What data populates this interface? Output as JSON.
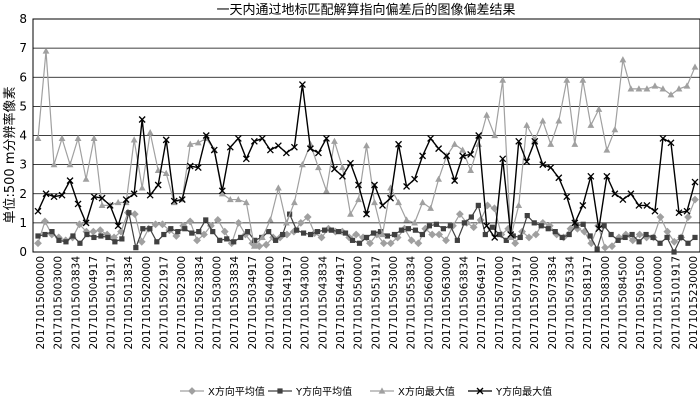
{
  "chart_data": {
    "type": "line",
    "title": "一天内通过地标匹配解算指向偏差后的图像偏差结果",
    "ylabel": "单位:500 m分辨率像素",
    "xlabel": "",
    "ylim": [
      0,
      8
    ],
    "yticks": [
      0,
      1,
      2,
      3,
      4,
      5,
      6,
      7,
      8
    ],
    "grid": true,
    "legend_position": "bottom",
    "x_tick_labels": [
      "20171015000000",
      "20171015003000",
      "20171015003834",
      "20171015004917",
      "20171015011917",
      "20171015013834",
      "20171015020000",
      "20171015021917",
      "20171015023000",
      "20171015023834",
      "20171015030000",
      "20171015033834",
      "20171015034917",
      "20171015040000",
      "20171015041917",
      "20171015043000",
      "20171015043834",
      "20171015044917",
      "20171015050000",
      "20171015051917",
      "20171015053000",
      "20171015053834",
      "20171015060000",
      "20171015063000",
      "20171015063834",
      "20171015064917",
      "20171015070000",
      "20171015071917",
      "20171015073000",
      "20171015073834",
      "20171015075334",
      "20171015081917",
      "20171015083000",
      "20171015084500",
      "20171015091500",
      "20171015100000",
      "20171015101917",
      "20171015230000"
    ],
    "series": [
      {
        "name": "X方向平均值",
        "color": "#a0a0a0",
        "marker": "diamond",
        "values": [
          0.3,
          1.05,
          0.6,
          0.5,
          0.4,
          0.5,
          0.95,
          0.7,
          0.7,
          0.75,
          0.6,
          0.5,
          0.7,
          1.35,
          1.3,
          0.35,
          0.8,
          0.95,
          0.95,
          0.75,
          0.55,
          0.9,
          1.05,
          0.4,
          0.6,
          0.9,
          1.1,
          0.7,
          0.3,
          1.0,
          0.6,
          0.3,
          0.2,
          0.25,
          0.5,
          0.5,
          0.6,
          0.7,
          1.0,
          1.2,
          0.65,
          0.5,
          0.8,
          0.7,
          0.7,
          0.5,
          0.6,
          0.5,
          0.3,
          0.6,
          0.3,
          0.3,
          0.5,
          0.8,
          0.4,
          0.3,
          0.8,
          0.6,
          0.6,
          0.4,
          0.9,
          1.3,
          1.0,
          0.85,
          1.1,
          1.6,
          1.5,
          0.6,
          0.8,
          0.3,
          0.7,
          0.5,
          0.6,
          1.0,
          0.9,
          0.6,
          0.5,
          0.8,
          0.8,
          0.7,
          0.3,
          0.9,
          0.15,
          0.2,
          0.5,
          0.6,
          0.4,
          0.6,
          0.5,
          0.5,
          1.2,
          0.7,
          0.35,
          0.5,
          1.2,
          1.8
        ]
      },
      {
        "name": "Y方向平均值",
        "color": "#404040",
        "marker": "square",
        "values": [
          0.55,
          0.6,
          0.7,
          0.4,
          0.35,
          0.55,
          0.3,
          0.6,
          0.5,
          0.55,
          0.5,
          0.35,
          0.45,
          1.35,
          0.15,
          0.8,
          0.8,
          0.35,
          0.6,
          0.8,
          0.7,
          0.8,
          0.65,
          0.7,
          1.1,
          0.7,
          0.4,
          0.45,
          0.35,
          0.5,
          0.7,
          0.4,
          0.5,
          0.7,
          0.4,
          0.6,
          1.3,
          0.75,
          0.65,
          0.6,
          0.7,
          0.75,
          0.75,
          0.7,
          0.65,
          0.4,
          0.3,
          0.5,
          0.65,
          0.7,
          0.55,
          0.6,
          0.75,
          0.8,
          0.75,
          0.6,
          0.9,
          0.95,
          0.8,
          0.9,
          0.4,
          1.0,
          1.2,
          1.6,
          0.6,
          0.85,
          0.6,
          0.4,
          0.55,
          0.5,
          1.25,
          1.0,
          0.9,
          0.8,
          0.7,
          0.5,
          0.6,
          0.9,
          0.95,
          0.55,
          0.1,
          0.9,
          0.6,
          0.4,
          0.5,
          0.6,
          0.35,
          0.6,
          0.5,
          0.3,
          0.5,
          0.0,
          0.5,
          0.3,
          0.5
        ]
      },
      {
        "name": "X方向最大值",
        "color": "#a0a0a0",
        "marker": "triangle",
        "values": [
          3.9,
          6.9,
          3.0,
          3.9,
          3.0,
          3.9,
          2.5,
          3.9,
          1.6,
          1.6,
          1.7,
          1.7,
          3.85,
          2.2,
          4.1,
          2.8,
          2.7,
          1.7,
          1.8,
          3.7,
          3.75,
          3.9,
          3.5,
          2.0,
          1.8,
          1.8,
          1.7,
          0.2,
          0.5,
          1.1,
          2.2,
          1.0,
          1.7,
          3.0,
          3.7,
          2.9,
          2.1,
          3.8,
          2.9,
          1.3,
          1.8,
          3.65,
          1.7,
          0.6,
          2.2,
          1.7,
          1.1,
          1.0,
          1.7,
          1.5,
          2.5,
          3.3,
          3.7,
          3.5,
          2.8,
          3.7,
          4.7,
          4.0,
          5.9,
          0.5,
          1.6,
          4.35,
          3.85,
          4.5,
          3.7,
          4.5,
          5.9,
          3.7,
          5.9,
          4.35,
          4.9,
          3.5,
          4.2,
          6.6,
          5.6,
          5.6,
          5.6,
          5.7,
          5.6,
          5.4,
          5.6,
          5.7,
          6.35
        ]
      },
      {
        "name": "Y方向最大值",
        "color": "#000000",
        "marker": "cross",
        "values": [
          1.4,
          2.0,
          1.9,
          1.95,
          2.45,
          1.65,
          1.0,
          1.9,
          1.85,
          1.6,
          0.9,
          1.8,
          2.0,
          4.55,
          1.95,
          2.3,
          3.85,
          1.75,
          1.8,
          2.95,
          2.9,
          4.0,
          3.5,
          2.1,
          3.6,
          3.9,
          3.2,
          3.8,
          3.9,
          3.5,
          3.65,
          3.4,
          3.6,
          5.75,
          3.55,
          3.4,
          3.9,
          2.85,
          2.6,
          3.05,
          2.3,
          1.3,
          2.3,
          1.6,
          1.85,
          3.7,
          2.25,
          2.5,
          3.3,
          3.9,
          3.55,
          3.3,
          2.45,
          3.3,
          3.35,
          4.0,
          0.9,
          0.5,
          3.2,
          0.6,
          3.8,
          3.1,
          3.8,
          3.0,
          2.9,
          2.55,
          1.9,
          1.0,
          1.6,
          2.6,
          0.8,
          2.6,
          2.0,
          1.8,
          2.0,
          1.6,
          1.6,
          1.4,
          3.9,
          3.75,
          1.35,
          1.4,
          2.4
        ]
      }
    ]
  }
}
